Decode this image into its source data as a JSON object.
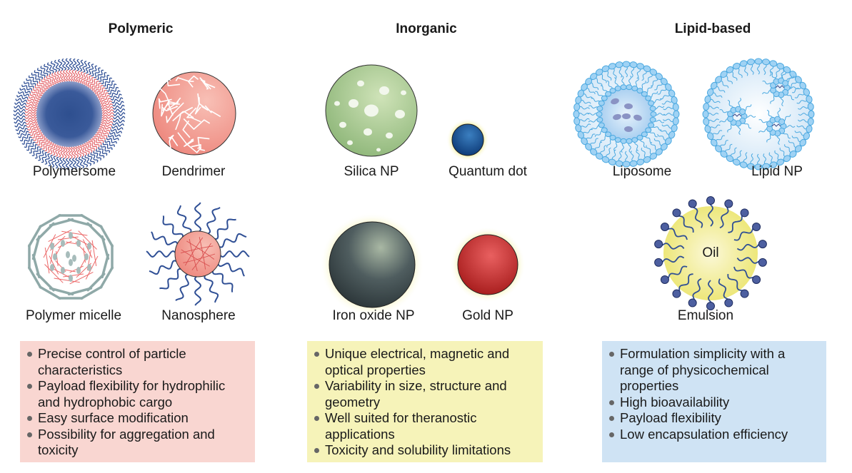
{
  "columns": [
    {
      "title": "Polymeric",
      "particles": [
        "Polymersome",
        "Dendrimer",
        "Polymer micelle",
        "Nanosphere"
      ],
      "box_color": "#f9d6d1",
      "points": [
        "Precise control of particle characteristics",
        "Payload flexibility for hydrophilic and hydrophobic cargo",
        "Easy surface modification",
        "Possibility for aggregation and toxicity"
      ]
    },
    {
      "title": "Inorganic",
      "particles": [
        "Silica NP",
        "Quantum dot",
        "Iron oxide NP",
        "Gold NP"
      ],
      "box_color": "#f6f3b9",
      "points": [
        "Unique electrical, magnetic and optical properties",
        "Variability in size, structure and geometry",
        "Well suited for theranostic applications",
        "Toxicity and solubility limitations"
      ]
    },
    {
      "title": "Lipid-based",
      "particles": [
        "Liposome",
        "Lipid NP",
        "Emulsion"
      ],
      "oil_label": "Oil",
      "box_color": "#cfe3f4",
      "points": [
        "Formulation simplicity with a range of physicochemical properties",
        "High bioavailability",
        "Payload flexibility",
        "Low encapsulation efficiency"
      ]
    }
  ]
}
